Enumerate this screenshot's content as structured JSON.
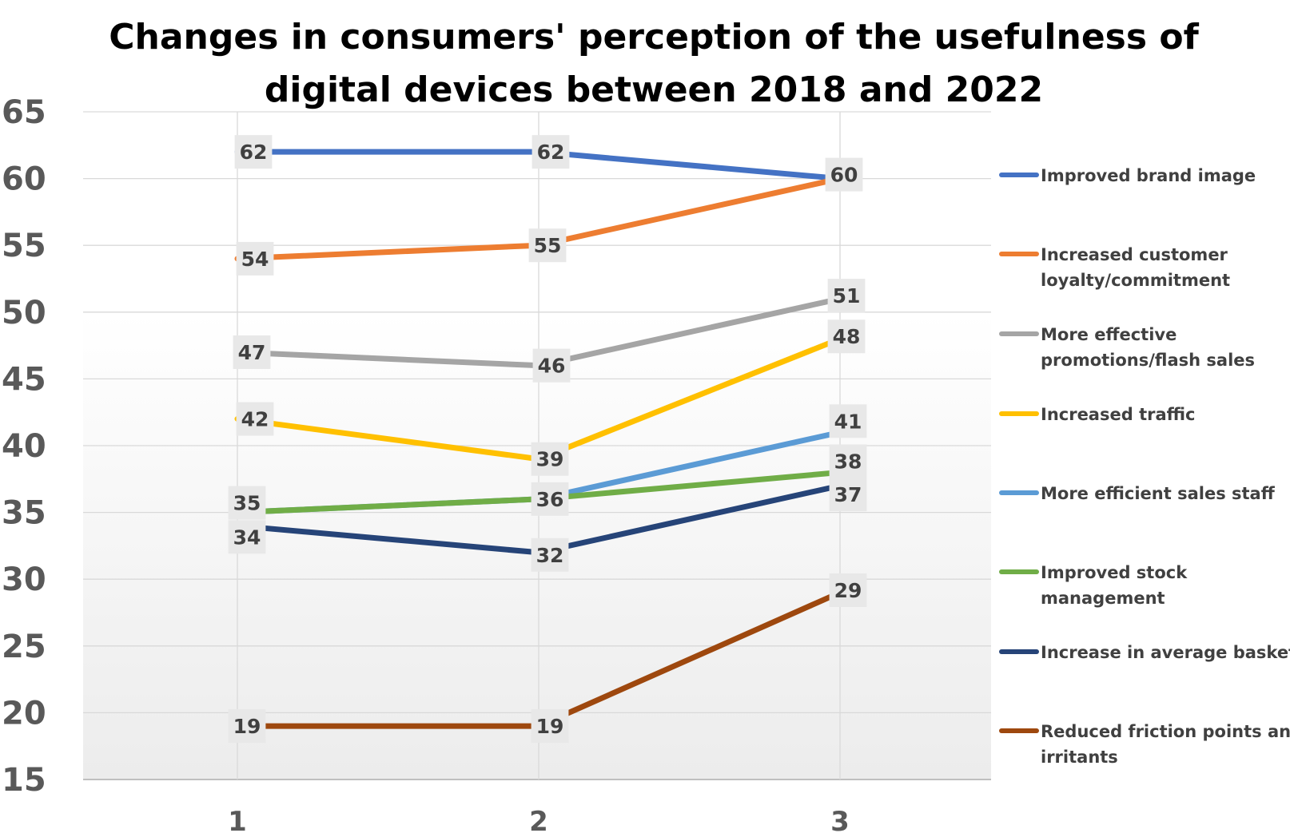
{
  "chart_data": {
    "type": "line",
    "title_lines": [
      "Changes in consumers' perception of the usefulness of",
      "digital devices between 2018 and 2022"
    ],
    "xlabel": "",
    "ylabel": "",
    "x": [
      "1",
      "2",
      "3"
    ],
    "ylim": [
      15,
      65
    ],
    "yticks": [
      "15",
      "20",
      "25",
      "30",
      "35",
      "40",
      "45",
      "50",
      "55",
      "60",
      "65"
    ],
    "grid": true,
    "legend_position": "right",
    "series": [
      {
        "name": "Improved brand image",
        "legend_lines": [
          "Improved brand image"
        ],
        "color": "#4472C4",
        "values": [
          62,
          62,
          60
        ]
      },
      {
        "name": "Increased customer loyalty/commitment",
        "legend_lines": [
          "Increased customer",
          "loyalty/commitment"
        ],
        "color": "#ED7D31",
        "values": [
          54,
          55,
          60
        ]
      },
      {
        "name": "More effective promotions/flash sales",
        "legend_lines": [
          "More effective",
          "promotions/flash sales"
        ],
        "color": "#A5A5A5",
        "values": [
          47,
          46,
          51
        ]
      },
      {
        "name": "Increased traffic",
        "legend_lines": [
          "Increased traffic"
        ],
        "color": "#FFC000",
        "values": [
          42,
          39,
          48
        ]
      },
      {
        "name": "More efficient sales staff",
        "legend_lines": [
          "More efficient sales staff"
        ],
        "color": "#5B9BD5",
        "values": [
          35,
          36,
          41
        ]
      },
      {
        "name": "Improved stock management",
        "legend_lines": [
          "Improved stock",
          "management"
        ],
        "color": "#70AD47",
        "values": [
          35,
          36,
          38
        ]
      },
      {
        "name": "Increase in average basket",
        "legend_lines": [
          "Increase in average basket"
        ],
        "color": "#264478",
        "values": [
          34,
          32,
          37
        ]
      },
      {
        "name": "Reduced friction points and irritants",
        "legend_lines": [
          "Reduced friction points and",
          "irritants"
        ],
        "color": "#9E480E",
        "values": [
          19,
          19,
          29
        ]
      }
    ],
    "data_labels": [
      [
        "62",
        "62",
        "60"
      ],
      [
        "54",
        "55",
        ""
      ],
      [
        "47",
        "46",
        "51"
      ],
      [
        "42",
        "39",
        "48"
      ],
      [
        "",
        "",
        "41"
      ],
      [
        "35",
        "36",
        "38"
      ],
      [
        "34",
        "32",
        "37"
      ],
      [
        "19",
        "19",
        "29"
      ]
    ]
  }
}
